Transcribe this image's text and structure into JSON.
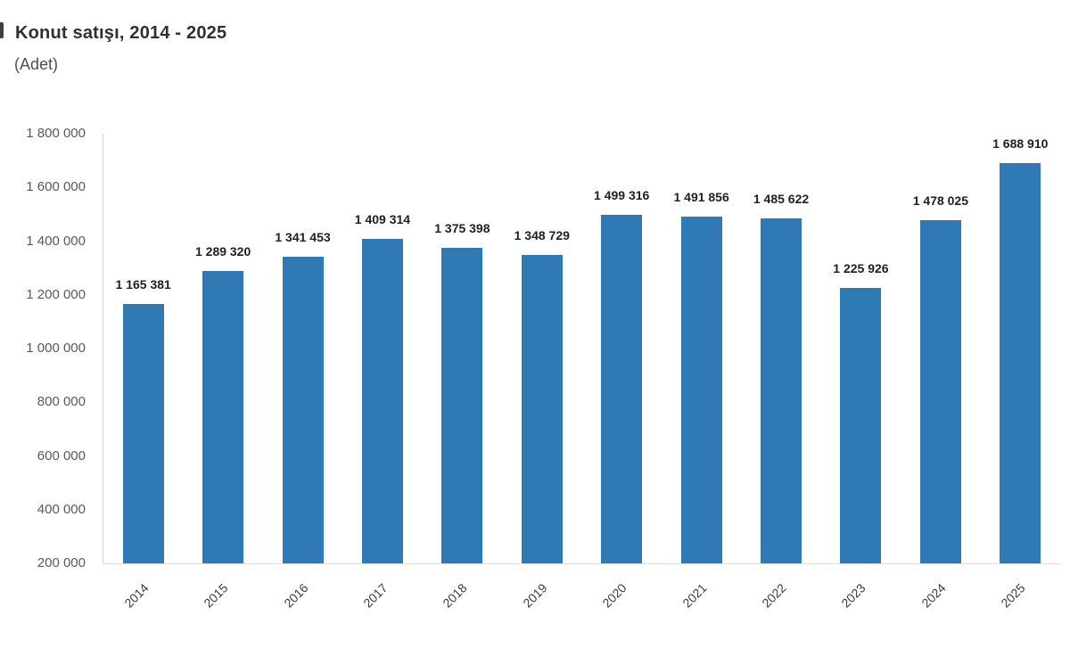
{
  "page": {
    "background": "#ffffff"
  },
  "chart_data": {
    "type": "bar",
    "title": "Konut satışı, 2014 - 2025",
    "subtitle": "(Adet)",
    "unit_label": "Adet",
    "categories": [
      "2014",
      "2015",
      "2016",
      "2017",
      "2018",
      "2019",
      "2020",
      "2021",
      "2022",
      "2023",
      "2024",
      "2025"
    ],
    "values": [
      1165381,
      1289320,
      1341453,
      1409314,
      1375398,
      1348729,
      1499316,
      1491856,
      1485622,
      1225926,
      1478025,
      1688910
    ],
    "value_labels": [
      "1 165 381",
      "1 289 320",
      "1 341 453",
      "1 409 314",
      "1 375 398",
      "1 348 729",
      "1 499 316",
      "1 491 856",
      "1 485 622",
      "1 225 926",
      "1 478 025",
      "1 688 910"
    ],
    "xlabel": "",
    "ylabel": "",
    "ylim": [
      200000,
      1800000
    ],
    "y_ticks": [
      200000,
      400000,
      600000,
      800000,
      1000000,
      1200000,
      1400000,
      1600000,
      1800000
    ],
    "y_tick_labels": [
      "200 000",
      "400 000",
      "600 000",
      "800 000",
      "1 000 000",
      "1 200 000",
      "1 400 000",
      "1 600 000",
      "1 800 000"
    ],
    "x_tick_rotation": -45,
    "grid": false,
    "legend": false,
    "bar_color": "#2f7ab5",
    "value_label_color": "#1f1f1f",
    "tick_label_color": "#595959",
    "axis_line_color": "#d6d6d6"
  }
}
